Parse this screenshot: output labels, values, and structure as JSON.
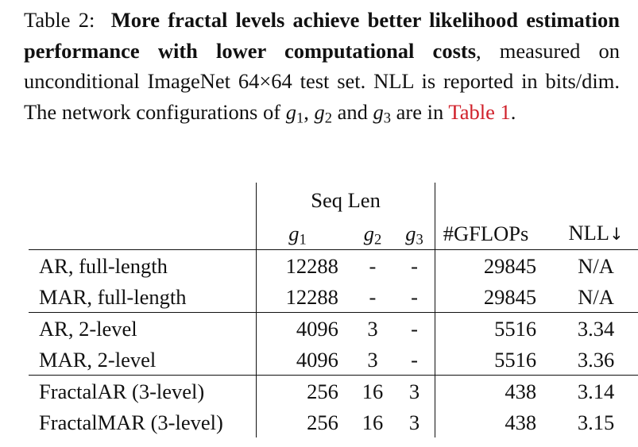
{
  "caption": {
    "label": "Table 2:",
    "bold": "More fractal levels achieve better likelihood estimation performance with lower computational costs",
    "text_1": ", measured on unconditional ImageNet 64×64 test set. NLL is reported in bits/dim. The network configurations of ",
    "g1": "g",
    "g1_sub": "1",
    "text_2": ", ",
    "g2": "g",
    "g2_sub": "2",
    "text_3": " and ",
    "g3": "g",
    "g3_sub": "3",
    "text_4": " are in ",
    "ref": "Table 1",
    "text_5": ".",
    "ref_color": "#d0202a"
  },
  "table": {
    "group_header": "Seq Len",
    "headers": {
      "g1": "g",
      "g1_sub": "1",
      "g2": "g",
      "g2_sub": "2",
      "g3": "g",
      "g3_sub": "3",
      "gflops": "#GFLOPs",
      "nll": "NLL",
      "nll_arrow": "↓"
    },
    "rows": [
      {
        "name": "AR, full-length",
        "g1": "12288",
        "g2": "-",
        "g3": "-",
        "gflops": "29845",
        "nll": "N/A"
      },
      {
        "name": "MAR, full-length",
        "g1": "12288",
        "g2": "-",
        "g3": "-",
        "gflops": "29845",
        "nll": "N/A"
      },
      {
        "name": "AR, 2-level",
        "g1": "4096",
        "g2": "3",
        "g3": "-",
        "gflops": "5516",
        "nll": "3.34"
      },
      {
        "name": "MAR, 2-level",
        "g1": "4096",
        "g2": "3",
        "g3": "-",
        "gflops": "5516",
        "nll": "3.36"
      },
      {
        "name": "FractalAR (3-level)",
        "g1": "256",
        "g2": "16",
        "g3": "3",
        "gflops": "438",
        "nll": "3.14"
      },
      {
        "name": "FractalMAR (3-level)",
        "g1": "256",
        "g2": "16",
        "g3": "3",
        "gflops": "438",
        "nll": "3.15"
      }
    ]
  }
}
